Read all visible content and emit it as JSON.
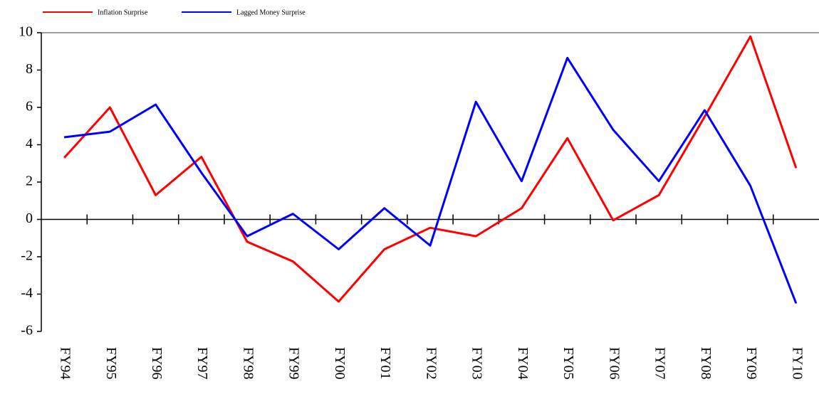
{
  "chart_data": {
    "type": "line",
    "categories": [
      "FY94",
      "FY95",
      "FY96",
      "FY97",
      "FY98",
      "FY99",
      "FY00",
      "FY01",
      "FY02",
      "FY03",
      "FY04",
      "FY05",
      "FY06",
      "FY07",
      "FY08",
      "FY09",
      "FY10"
    ],
    "series": [
      {
        "name": "Inflation Surprise",
        "color": "#ff0000",
        "values": [
          3.3,
          6.0,
          1.3,
          3.35,
          -1.2,
          -2.25,
          -4.4,
          -1.6,
          -0.45,
          -0.9,
          0.6,
          4.35,
          -0.05,
          1.3,
          5.5,
          9.8,
          2.75
        ]
      },
      {
        "name": "Lagged Money Surprise",
        "color": "#0000ff",
        "values": [
          4.4,
          4.7,
          6.15,
          2.5,
          -0.9,
          0.3,
          -1.6,
          0.6,
          -1.4,
          6.3,
          2.05,
          8.65,
          4.8,
          2.05,
          5.85,
          1.8,
          -4.5
        ]
      }
    ],
    "ylim": [
      -6,
      10
    ],
    "yticks": [
      -6,
      -4,
      -2,
      0,
      2,
      4,
      6,
      8,
      10
    ]
  }
}
